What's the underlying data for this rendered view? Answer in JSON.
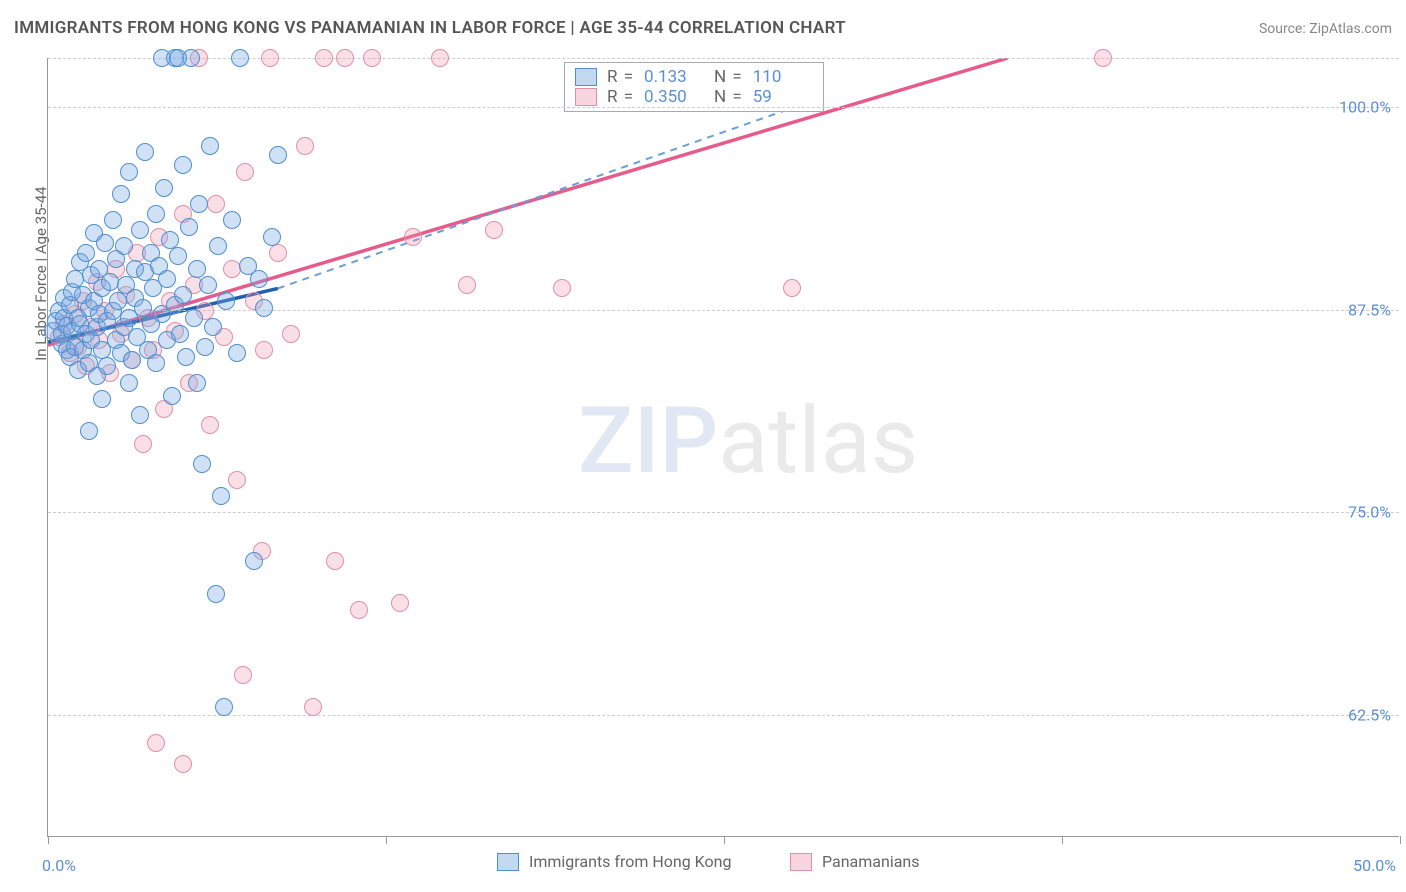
{
  "title": "IMMIGRANTS FROM HONG KONG VS PANAMANIAN IN LABOR FORCE | AGE 35-44 CORRELATION CHART",
  "source": "Source: ZipAtlas.com",
  "y_axis_label": "In Labor Force | Age 35-44",
  "watermark": {
    "part1": "ZIP",
    "part2": "atlas"
  },
  "colors": {
    "series1_fill": "rgba(120,170,225,0.35)",
    "series1_stroke": "#4f8fd0",
    "series2_fill": "rgba(240,150,175,0.30)",
    "series2_stroke": "#e190aa",
    "trend1_solid": "#1f5fb0",
    "trend1_dash": "#6a9fd8",
    "trend2": "#e75a8a",
    "grid": "#cccccc",
    "axis": "#999999",
    "tick_text": "#5b8fd6",
    "label_text": "#666666"
  },
  "chart": {
    "type": "scatter",
    "xlim": [
      0,
      50
    ],
    "ylim": [
      55,
      103
    ],
    "y_gridlines": [
      62.5,
      75.0,
      87.5,
      100.0,
      103.0
    ],
    "y_tick_labels": [
      "62.5%",
      "75.0%",
      "87.5%",
      "100.0%"
    ],
    "y_tick_values": [
      62.5,
      75.0,
      87.5,
      100.0
    ],
    "x_ticks": [
      0,
      12.5,
      25,
      37.5,
      50
    ],
    "x_tick_labels": {
      "0": "0.0%",
      "50": "50.0%"
    },
    "point_radius": 9,
    "point_stroke_width": 1.5
  },
  "legend_top": {
    "rows": [
      {
        "swatch_fill": "rgba(120,170,225,0.45)",
        "swatch_stroke": "#4f8fd0",
        "r_label": "R =",
        "r_val": "0.133",
        "n_label": "N =",
        "n_val": "110"
      },
      {
        "swatch_fill": "rgba(240,150,175,0.40)",
        "swatch_stroke": "#e190aa",
        "r_label": "R =",
        "r_val": "0.350",
        "n_label": "N =",
        "n_val": "59"
      }
    ]
  },
  "legend_bottom": [
    {
      "swatch_fill": "rgba(120,170,225,0.45)",
      "swatch_stroke": "#4f8fd0",
      "label": "Immigrants from Hong Kong"
    },
    {
      "swatch_fill": "rgba(240,150,175,0.40)",
      "swatch_stroke": "#e190aa",
      "label": "Panamanians"
    }
  ],
  "trend_lines": {
    "series1": {
      "x1": 0,
      "y1": 85.5,
      "x_solid_end": 8.5,
      "y_solid_end": 88.8,
      "x2": 28,
      "y2": 100.2
    },
    "series2": {
      "x1": 0,
      "y1": 85.3,
      "x2": 35.5,
      "y2": 103.0
    }
  },
  "series1_points": [
    [
      0.2,
      86.2
    ],
    [
      0.3,
      86.8
    ],
    [
      0.4,
      87.4
    ],
    [
      0.5,
      85.4
    ],
    [
      0.5,
      86.0
    ],
    [
      0.6,
      87.0
    ],
    [
      0.6,
      88.2
    ],
    [
      0.7,
      85.0
    ],
    [
      0.7,
      86.5
    ],
    [
      0.8,
      87.8
    ],
    [
      0.8,
      84.6
    ],
    [
      0.9,
      86.2
    ],
    [
      0.9,
      88.6
    ],
    [
      1.0,
      85.2
    ],
    [
      1.0,
      89.4
    ],
    [
      1.1,
      87.0
    ],
    [
      1.1,
      83.8
    ],
    [
      1.2,
      86.6
    ],
    [
      1.2,
      90.4
    ],
    [
      1.3,
      85.0
    ],
    [
      1.3,
      88.4
    ],
    [
      1.4,
      86.0
    ],
    [
      1.4,
      91.0
    ],
    [
      1.5,
      84.2
    ],
    [
      1.5,
      87.6
    ],
    [
      1.6,
      89.6
    ],
    [
      1.6,
      85.6
    ],
    [
      1.7,
      88.0
    ],
    [
      1.7,
      92.2
    ],
    [
      1.8,
      86.4
    ],
    [
      1.8,
      83.4
    ],
    [
      1.9,
      90.0
    ],
    [
      1.9,
      87.2
    ],
    [
      2.0,
      85.0
    ],
    [
      2.0,
      88.8
    ],
    [
      2.1,
      91.6
    ],
    [
      2.2,
      86.8
    ],
    [
      2.2,
      84.0
    ],
    [
      2.3,
      89.2
    ],
    [
      2.4,
      87.4
    ],
    [
      2.4,
      93.0
    ],
    [
      2.5,
      85.6
    ],
    [
      2.5,
      90.6
    ],
    [
      2.6,
      88.0
    ],
    [
      2.7,
      84.8
    ],
    [
      2.7,
      94.6
    ],
    [
      2.8,
      86.4
    ],
    [
      2.8,
      91.4
    ],
    [
      2.9,
      89.0
    ],
    [
      3.0,
      87.0
    ],
    [
      3.0,
      96.0
    ],
    [
      3.1,
      84.4
    ],
    [
      3.2,
      90.0
    ],
    [
      3.2,
      88.2
    ],
    [
      3.3,
      85.8
    ],
    [
      3.4,
      92.4
    ],
    [
      3.4,
      81.0
    ],
    [
      3.5,
      87.6
    ],
    [
      3.6,
      89.8
    ],
    [
      3.6,
      97.2
    ],
    [
      3.7,
      85.0
    ],
    [
      3.8,
      91.0
    ],
    [
      3.8,
      86.6
    ],
    [
      3.9,
      88.8
    ],
    [
      4.0,
      93.4
    ],
    [
      4.0,
      84.2
    ],
    [
      4.1,
      90.2
    ],
    [
      4.2,
      87.2
    ],
    [
      4.2,
      103.0
    ],
    [
      4.3,
      95.0
    ],
    [
      4.4,
      85.6
    ],
    [
      4.4,
      89.4
    ],
    [
      4.5,
      91.8
    ],
    [
      4.6,
      82.2
    ],
    [
      4.7,
      87.8
    ],
    [
      4.7,
      103.0
    ],
    [
      4.8,
      90.8
    ],
    [
      4.9,
      86.0
    ],
    [
      5.0,
      96.4
    ],
    [
      5.0,
      88.4
    ],
    [
      5.1,
      84.6
    ],
    [
      5.2,
      92.6
    ],
    [
      5.3,
      103.0
    ],
    [
      5.4,
      87.0
    ],
    [
      5.5,
      90.0
    ],
    [
      5.6,
      94.0
    ],
    [
      5.7,
      78.0
    ],
    [
      5.8,
      85.2
    ],
    [
      5.9,
      89.0
    ],
    [
      6.0,
      97.6
    ],
    [
      6.1,
      86.4
    ],
    [
      6.3,
      91.4
    ],
    [
      6.4,
      76.0
    ],
    [
      6.6,
      88.0
    ],
    [
      6.8,
      93.0
    ],
    [
      7.0,
      84.8
    ],
    [
      7.1,
      103.0
    ],
    [
      7.4,
      90.2
    ],
    [
      7.6,
      72.0
    ],
    [
      6.5,
      63.0
    ],
    [
      6.2,
      70.0
    ],
    [
      8.5,
      97.0
    ],
    [
      8.0,
      87.6
    ],
    [
      8.3,
      92.0
    ],
    [
      7.8,
      89.4
    ],
    [
      4.8,
      103.0
    ],
    [
      5.5,
      83.0
    ],
    [
      3.0,
      83.0
    ],
    [
      1.5,
      80.0
    ],
    [
      2.0,
      82.0
    ]
  ],
  "series2_points": [
    [
      0.4,
      85.8
    ],
    [
      0.6,
      86.6
    ],
    [
      0.8,
      84.8
    ],
    [
      1.0,
      87.2
    ],
    [
      1.1,
      85.2
    ],
    [
      1.3,
      88.0
    ],
    [
      1.4,
      84.0
    ],
    [
      1.6,
      86.4
    ],
    [
      1.8,
      89.2
    ],
    [
      1.9,
      85.6
    ],
    [
      2.1,
      87.4
    ],
    [
      2.3,
      83.6
    ],
    [
      2.5,
      90.0
    ],
    [
      2.7,
      86.0
    ],
    [
      2.9,
      88.4
    ],
    [
      3.1,
      84.4
    ],
    [
      3.3,
      91.0
    ],
    [
      3.5,
      79.2
    ],
    [
      3.7,
      87.0
    ],
    [
      3.9,
      85.0
    ],
    [
      4.1,
      92.0
    ],
    [
      4.3,
      81.4
    ],
    [
      4.5,
      88.0
    ],
    [
      4.7,
      86.2
    ],
    [
      5.0,
      93.4
    ],
    [
      5.2,
      83.0
    ],
    [
      5.4,
      89.0
    ],
    [
      5.6,
      103.0
    ],
    [
      5.8,
      87.4
    ],
    [
      6.0,
      80.4
    ],
    [
      6.2,
      94.0
    ],
    [
      6.5,
      85.8
    ],
    [
      6.8,
      90.0
    ],
    [
      7.0,
      77.0
    ],
    [
      7.3,
      96.0
    ],
    [
      7.6,
      88.0
    ],
    [
      7.9,
      72.6
    ],
    [
      8.2,
      103.0
    ],
    [
      8.5,
      91.0
    ],
    [
      7.2,
      65.0
    ],
    [
      9.0,
      86.0
    ],
    [
      9.5,
      97.6
    ],
    [
      9.8,
      63.0
    ],
    [
      10.2,
      103.0
    ],
    [
      10.6,
      72.0
    ],
    [
      11.0,
      103.0
    ],
    [
      11.5,
      69.0
    ],
    [
      12.0,
      103.0
    ],
    [
      13.0,
      69.4
    ],
    [
      13.5,
      92.0
    ],
    [
      14.5,
      103.0
    ],
    [
      15.5,
      89.0
    ],
    [
      16.5,
      92.4
    ],
    [
      19.0,
      88.8
    ],
    [
      27.5,
      88.8
    ],
    [
      39.0,
      103.0
    ],
    [
      5.0,
      59.5
    ],
    [
      4.0,
      60.8
    ],
    [
      8.0,
      85.0
    ]
  ]
}
